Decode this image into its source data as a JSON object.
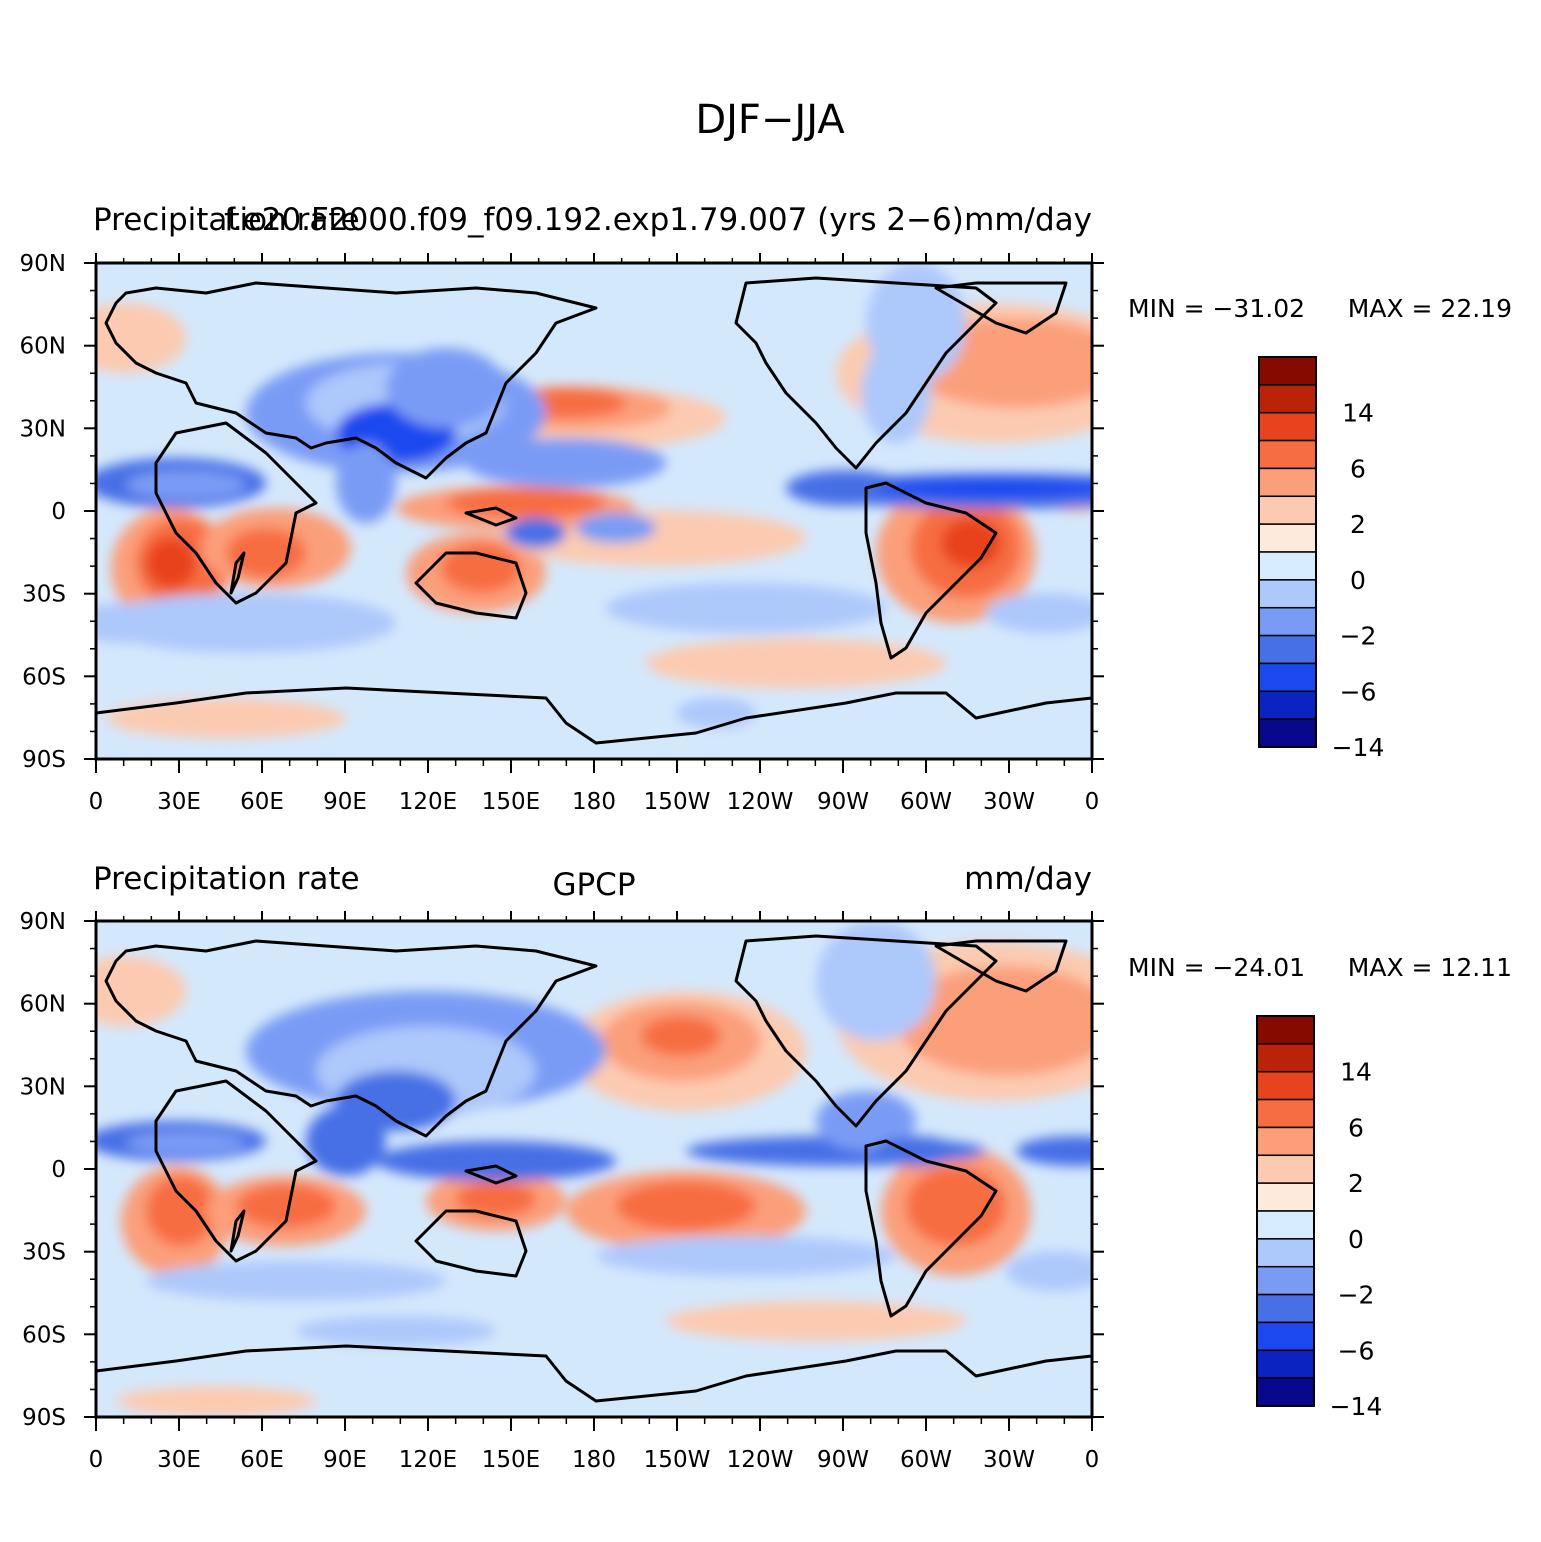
{
  "title": "DJF−JJA",
  "colors": {
    "ocean_base": "#d4e8fc",
    "coastline": "#000000",
    "levels": [
      "#08088c",
      "#0b23c1",
      "#1b48ef",
      "#476fe6",
      "#7a9bf5",
      "#adc8fb",
      "#d6ebfe",
      "#feeadc",
      "#fccab0",
      "#fb9f7a",
      "#f76d43",
      "#e8431f",
      "#bb2309",
      "#870a00"
    ]
  },
  "panels": [
    {
      "id": "model",
      "left_text": "Precipitation rate",
      "center_text": "f.e20.F2000.f09_f09.192.exp1.79.007 (yrs 2−6)",
      "right_text": "mm/day",
      "min_label": "MIN = −31.02",
      "max_label": "MAX = 22.19",
      "colorbar_labels": [
        "14",
        "6",
        "2",
        "0",
        "−2",
        "−6",
        "−14"
      ]
    },
    {
      "id": "gpcp",
      "left_text": "Precipitation rate",
      "center_text": "GPCP",
      "right_text": "mm/day",
      "min_label": "MIN = −24.01",
      "max_label": "MAX = 12.11",
      "colorbar_labels": [
        "14",
        "6",
        "2",
        "0",
        "−2",
        "−6",
        "−14"
      ]
    }
  ],
  "axes": {
    "lat_labels": [
      "90N",
      "60N",
      "30N",
      "0",
      "30S",
      "60S",
      "90S"
    ],
    "lon_labels": [
      "0",
      "30E",
      "60E",
      "90E",
      "120E",
      "150E",
      "180",
      "150W",
      "120W",
      "90W",
      "60W",
      "30W",
      "0"
    ]
  }
}
